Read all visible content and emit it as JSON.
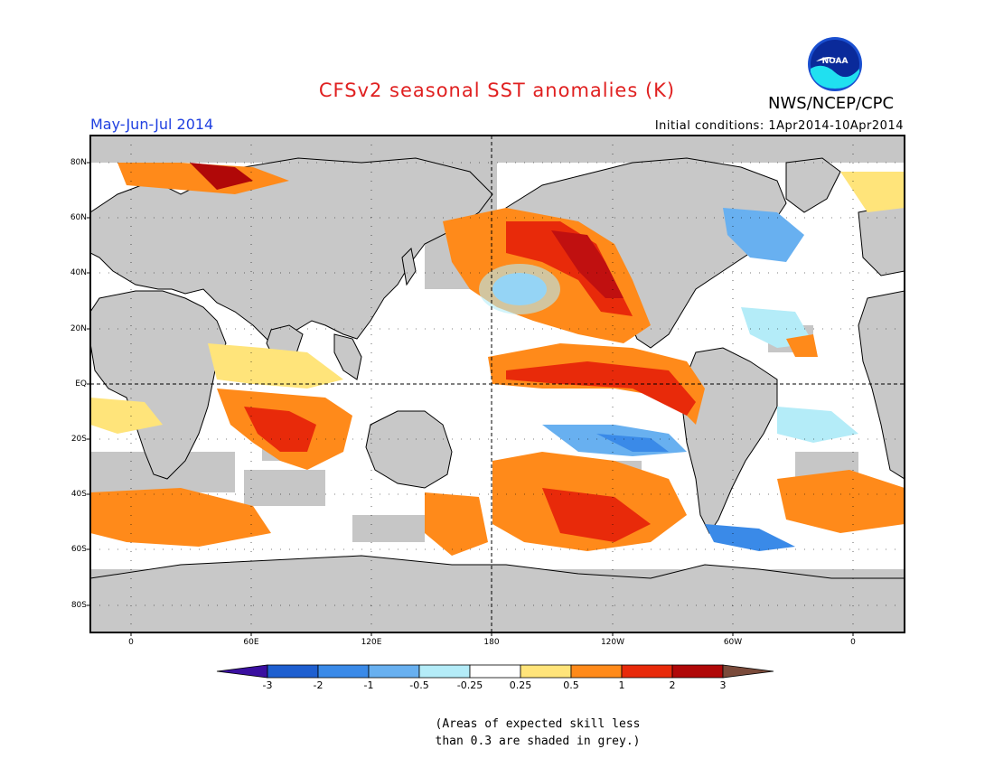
{
  "header": {
    "title": "CFSv2 seasonal SST anomalies (K)",
    "agency": "NWS/NCEP/CPC",
    "logo_text": "NOAA",
    "season": "May-Jun-Jul 2014",
    "initial_conditions": "Initial conditions: 1Apr2014-10Apr2014"
  },
  "axes": {
    "lat_labels": [
      "80N",
      "60N",
      "40N",
      "20N",
      "EQ",
      "20S",
      "40S",
      "60S",
      "80S"
    ],
    "lon_labels": [
      "0",
      "60E",
      "120E",
      "180",
      "120W",
      "60W",
      "0"
    ]
  },
  "colorbar": {
    "ticks": [
      "-3",
      "-2",
      "-1",
      "-0.5",
      "-0.25",
      "0.25",
      "0.5",
      "1",
      "2",
      "3"
    ],
    "colors": [
      "#3a0fa0",
      "#1e5fd0",
      "#3a8ae8",
      "#68b0f0",
      "#b4ecf8",
      "#ffffff",
      "#ffe47a",
      "#ff8a1a",
      "#e82a0a",
      "#b00808",
      "#7a4a3a"
    ]
  },
  "note": {
    "line1": "(Areas of expected skill less",
    "line2": "than 0.3 are shaded in grey.)"
  },
  "colors": {
    "grey_mask": "#c6c6c6",
    "title": "#e02020",
    "season": "#2040e0"
  }
}
